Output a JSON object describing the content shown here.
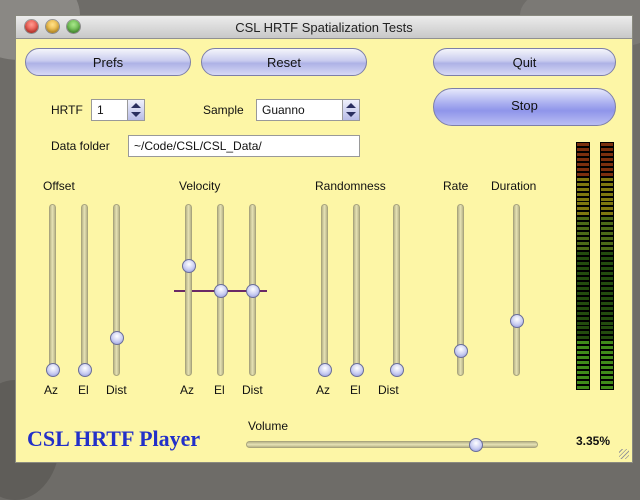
{
  "window": {
    "title": "CSL HRTF Spatialization Tests"
  },
  "buttons": {
    "prefs": "Prefs",
    "reset": "Reset",
    "quit": "Quit",
    "stop": "Stop"
  },
  "hrtf": {
    "label": "HRTF",
    "value": "1"
  },
  "sample": {
    "label": "Sample",
    "value": "Guanno"
  },
  "data_folder": {
    "label": "Data folder",
    "value": "~/Code/CSL/CSL_Data/"
  },
  "groups": {
    "offset": {
      "title": "Offset",
      "az": "Az",
      "el": "El",
      "dist": "Dist"
    },
    "velocity": {
      "title": "Velocity",
      "az": "Az",
      "el": "El",
      "dist": "Dist"
    },
    "randomness": {
      "title": "Randomness",
      "az": "Az",
      "el": "El",
      "dist": "Dist"
    },
    "rate": {
      "title": "Rate"
    },
    "duration": {
      "title": "Duration"
    }
  },
  "slider_levels": {
    "offset_az": 0.0,
    "offset_el": 0.0,
    "offset_dist": 0.2,
    "velocity_az": 0.66,
    "velocity_el": 0.5,
    "velocity_dist": 0.5,
    "randomness_az": 0.0,
    "randomness_el": 0.0,
    "randomness_dist": 0.0,
    "rate": 0.12,
    "duration": 0.31,
    "volume": 0.8
  },
  "meters": {
    "left_level": 0.2,
    "right_level": 0.2
  },
  "volume": {
    "label": "Volume",
    "percent_text": "3.35%"
  },
  "branding": {
    "text": "CSL HRTF Player"
  },
  "colors": {
    "window_bg": "#fdf6a6",
    "brand": "#2330c8",
    "velocity_line": "#6a2a66"
  }
}
